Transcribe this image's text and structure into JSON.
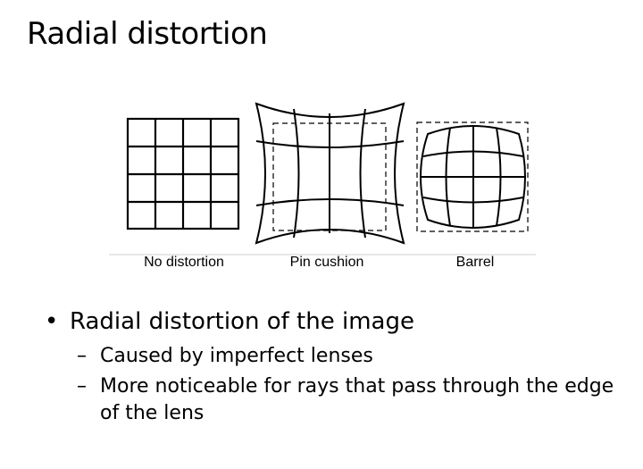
{
  "slide": {
    "title": "Radial distortion"
  },
  "figure": {
    "captions": {
      "no_distortion": "No distortion",
      "pin_cushion": "Pin cushion",
      "barrel": "Barrel"
    }
  },
  "bullets": {
    "marker": "•",
    "sub_marker": "–",
    "main": "Radial distortion of the image",
    "sub1": "Caused by imperfect lenses",
    "sub2": "More noticeable for rays that pass through the edge of the lens"
  }
}
